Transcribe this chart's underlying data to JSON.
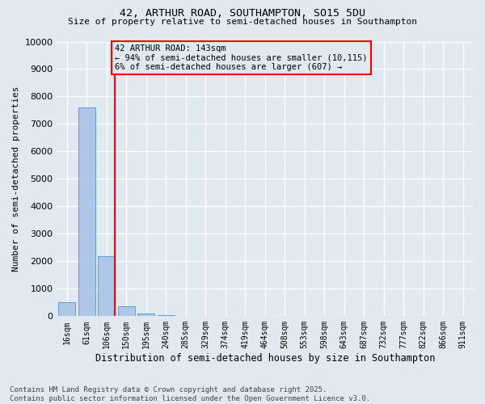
{
  "title1": "42, ARTHUR ROAD, SOUTHAMPTON, SO15 5DU",
  "title2": "Size of property relative to semi-detached houses in Southampton",
  "xlabel": "Distribution of semi-detached houses by size in Southampton",
  "ylabel": "Number of semi-detached properties",
  "categories": [
    "16sqm",
    "61sqm",
    "106sqm",
    "150sqm",
    "195sqm",
    "240sqm",
    "285sqm",
    "329sqm",
    "374sqm",
    "419sqm",
    "464sqm",
    "508sqm",
    "553sqm",
    "598sqm",
    "643sqm",
    "687sqm",
    "732sqm",
    "777sqm",
    "822sqm",
    "866sqm",
    "911sqm"
  ],
  "values": [
    500,
    7600,
    2200,
    350,
    100,
    50,
    0,
    0,
    0,
    0,
    0,
    0,
    0,
    0,
    0,
    0,
    0,
    0,
    0,
    0,
    0
  ],
  "bar_color": "#aec6e8",
  "bar_edge_color": "#5a9fd4",
  "vline_color": "red",
  "vline_pos": 2.43,
  "property_label": "42 ARTHUR ROAD: 143sqm",
  "annotation_line1": "← 94% of semi-detached houses are smaller (10,115)",
  "annotation_line2": "6% of semi-detached houses are larger (607) →",
  "ylim": [
    0,
    10000
  ],
  "yticks": [
    0,
    1000,
    2000,
    3000,
    4000,
    5000,
    6000,
    7000,
    8000,
    9000,
    10000
  ],
  "bg_color": "#e0e8f0",
  "grid_color": "white",
  "footer1": "Contains HM Land Registry data © Crown copyright and database right 2025.",
  "footer2": "Contains public sector information licensed under the Open Government Licence v3.0."
}
